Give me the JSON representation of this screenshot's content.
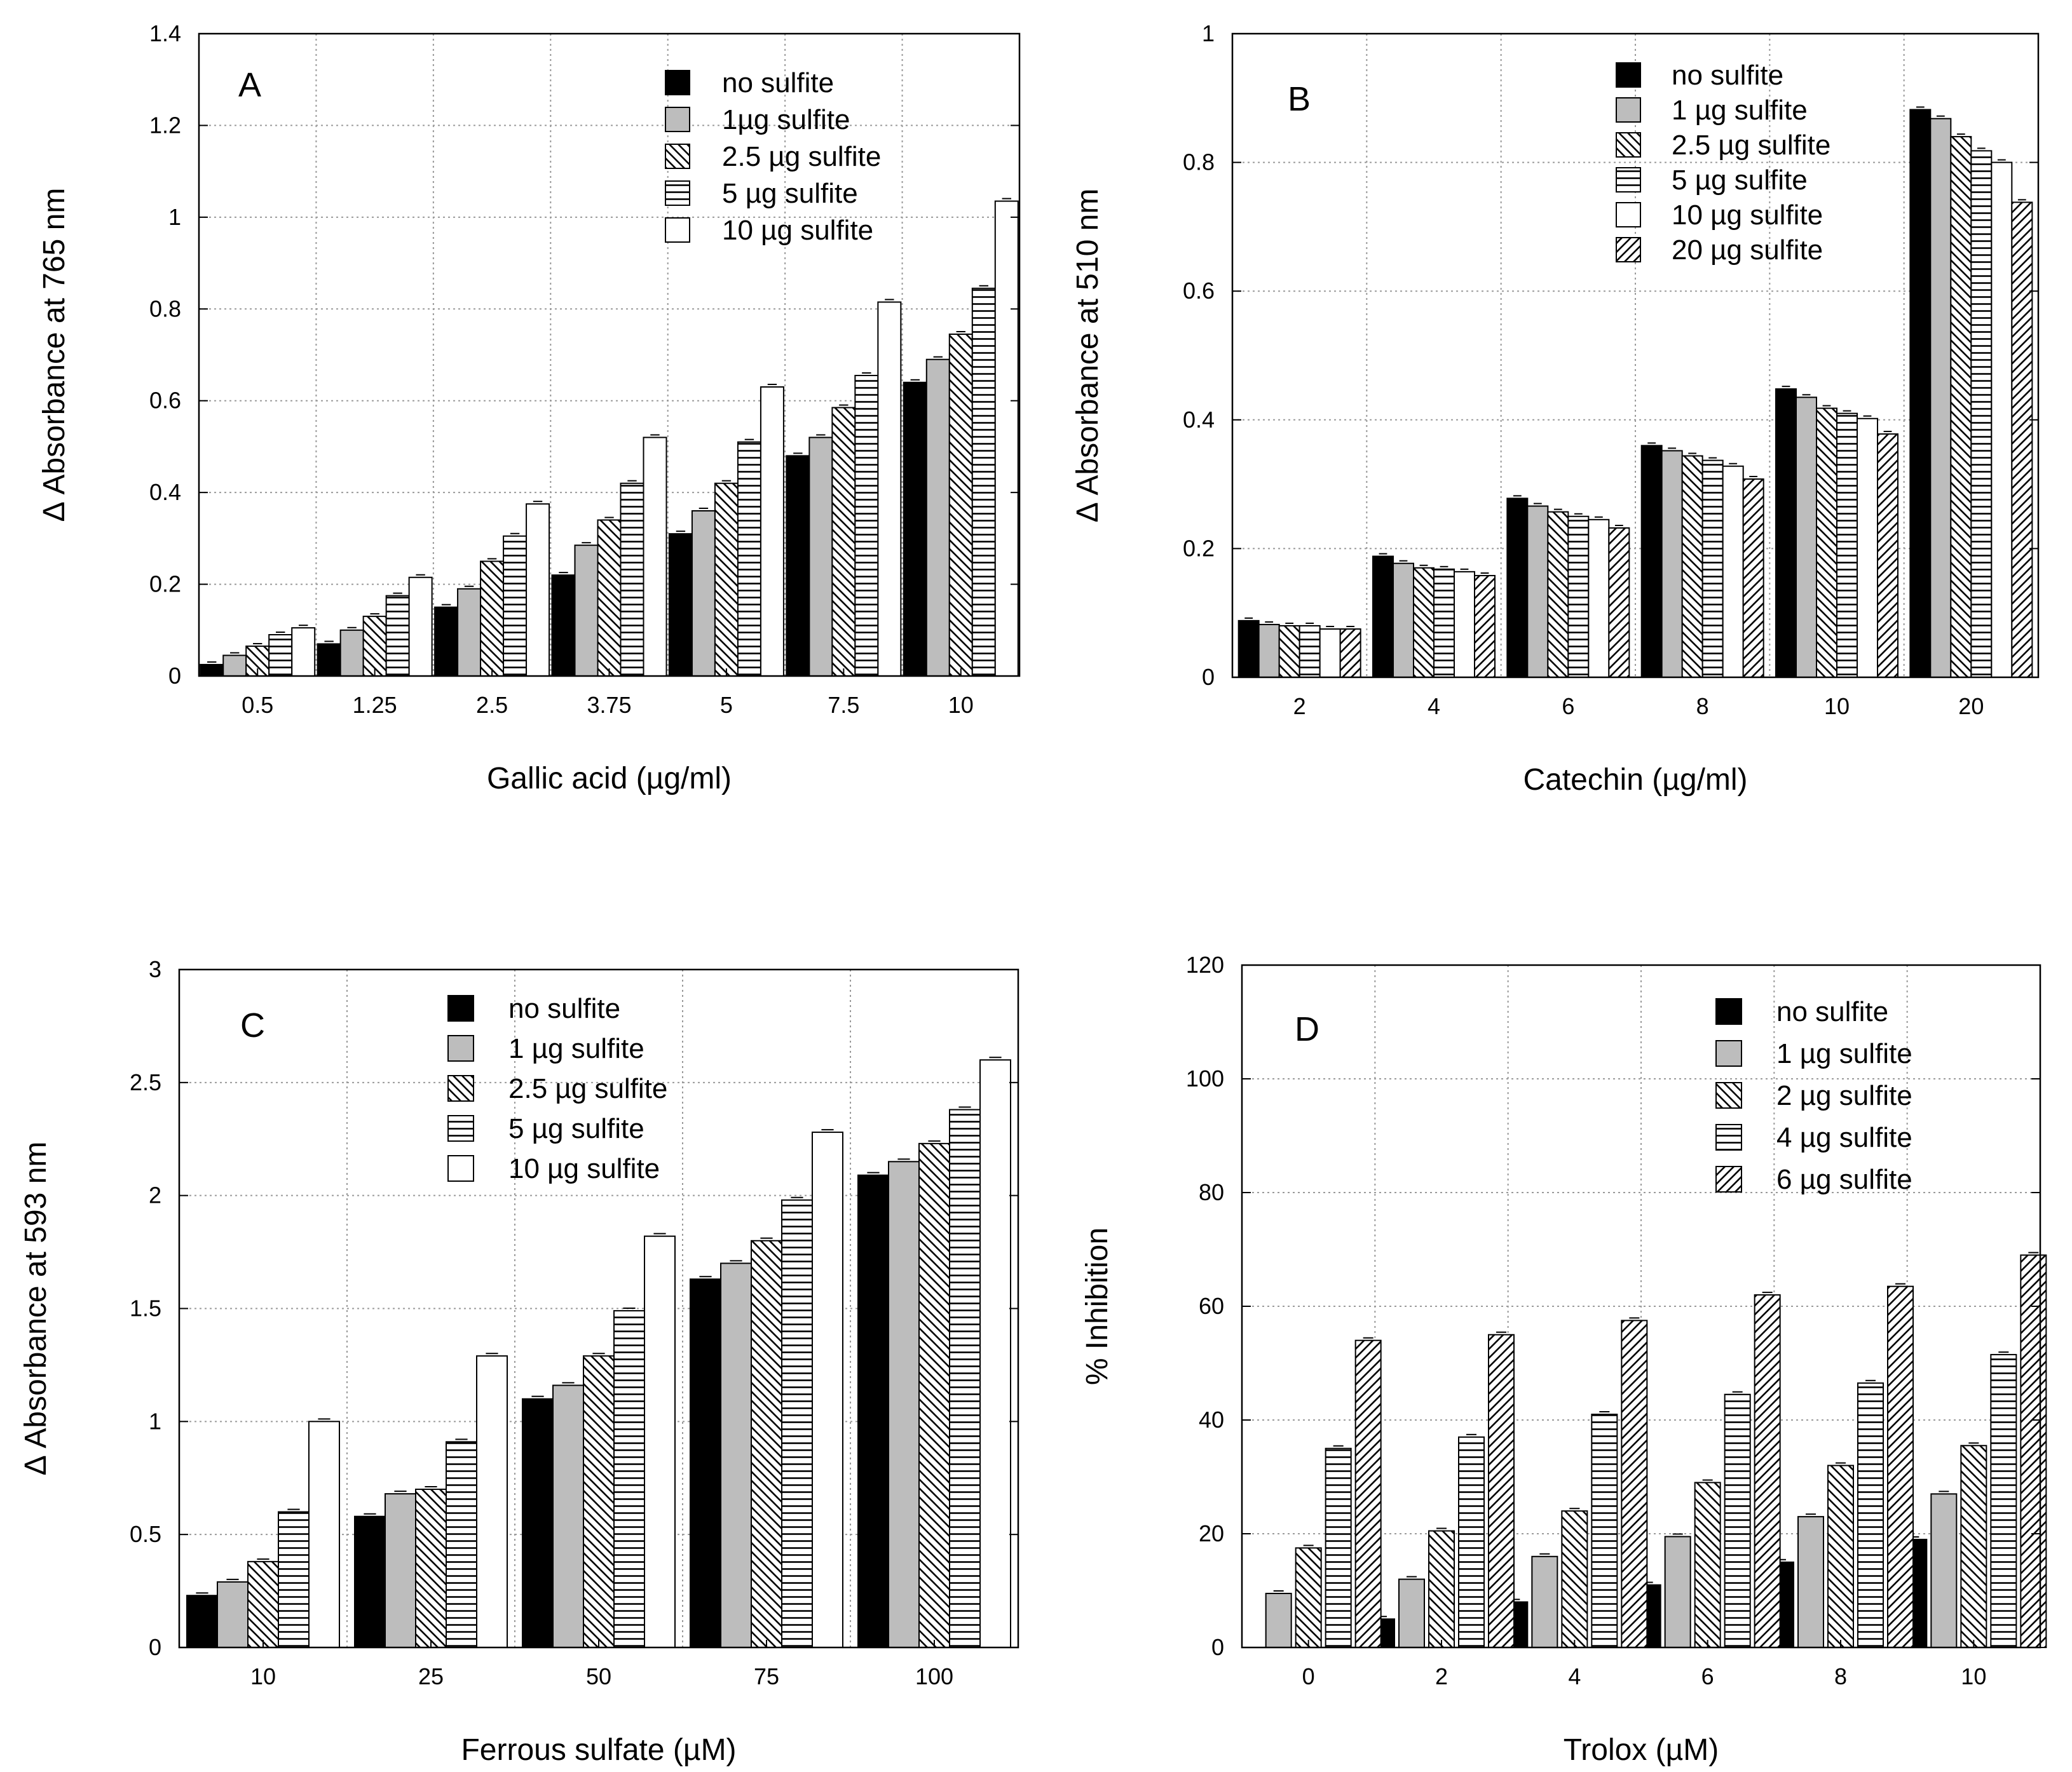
{
  "colors": {
    "black": "#000000",
    "gray": "#bdbdbd",
    "white": "#ffffff",
    "grid": "#9a9a9a"
  },
  "chart_data": [
    {
      "type": "bar",
      "panel_label": "A",
      "xlabel": "Gallic acid (µg/ml)",
      "ylabel": "Δ Absorbance at 765 nm",
      "categories": [
        "0.5",
        "1.25",
        "2.5",
        "3.75",
        "5",
        "7.5",
        "10"
      ],
      "ylim": [
        0,
        1.4
      ],
      "yticks": [
        "0",
        "0.2",
        "0.4",
        "0.6",
        "0.8",
        "1",
        "1.2",
        "1.4"
      ],
      "grid": true,
      "legend_position": "top-right",
      "series": [
        {
          "name": "no sulfite",
          "pattern": "black",
          "values": [
            0.025,
            0.07,
            0.15,
            0.22,
            0.31,
            0.48,
            0.64
          ]
        },
        {
          "name": "1µg sulfite",
          "pattern": "gray",
          "values": [
            0.045,
            0.1,
            0.19,
            0.285,
            0.36,
            0.52,
            0.69
          ]
        },
        {
          "name": "2.5 µg sulfite",
          "pattern": "diag-back",
          "values": [
            0.065,
            0.13,
            0.25,
            0.34,
            0.42,
            0.585,
            0.745
          ]
        },
        {
          "name": "5 µg sulfite",
          "pattern": "horiz",
          "values": [
            0.09,
            0.175,
            0.305,
            0.42,
            0.51,
            0.655,
            0.845
          ]
        },
        {
          "name": "10 µg sulfite",
          "pattern": "white",
          "values": [
            0.105,
            0.215,
            0.375,
            0.52,
            0.63,
            0.815,
            1.035
          ]
        }
      ]
    },
    {
      "type": "bar",
      "panel_label": "B",
      "xlabel": "Catechin (µg/ml)",
      "ylabel": "Δ Absorbance at 510 nm",
      "categories": [
        "2",
        "4",
        "6",
        "8",
        "10",
        "20"
      ],
      "ylim": [
        0,
        1
      ],
      "yticks": [
        "0",
        "0.2",
        "0.4",
        "0.6",
        "0.8",
        "1"
      ],
      "grid": true,
      "legend_position": "top-right",
      "series": [
        {
          "name": "no sulfite",
          "pattern": "black",
          "values": [
            0.088,
            0.188,
            0.278,
            0.36,
            0.448,
            0.882
          ]
        },
        {
          "name": "1 µg sulfite",
          "pattern": "gray",
          "values": [
            0.082,
            0.177,
            0.266,
            0.352,
            0.435,
            0.868
          ]
        },
        {
          "name": "2.5 µg sulfite",
          "pattern": "diag-back",
          "values": [
            0.08,
            0.17,
            0.257,
            0.344,
            0.418,
            0.84
          ]
        },
        {
          "name": "5 µg sulfite",
          "pattern": "horiz",
          "values": [
            0.08,
            0.168,
            0.25,
            0.337,
            0.41,
            0.818
          ]
        },
        {
          "name": "10 µg sulfite",
          "pattern": "white",
          "values": [
            0.075,
            0.164,
            0.245,
            0.328,
            0.402,
            0.8
          ]
        },
        {
          "name": "20 µg sulfite",
          "pattern": "diag-fwd",
          "values": [
            0.075,
            0.158,
            0.232,
            0.308,
            0.378,
            0.738
          ]
        }
      ]
    },
    {
      "type": "bar",
      "panel_label": "C",
      "xlabel": "Ferrous sulfate (µM)",
      "ylabel": "Δ Absorbance at 593 nm",
      "categories": [
        "10",
        "25",
        "50",
        "75",
        "100"
      ],
      "ylim": [
        0,
        3
      ],
      "yticks": [
        "0",
        "0.5",
        "1",
        "1.5",
        "2",
        "2.5",
        "3"
      ],
      "grid": true,
      "legend_position": "top-center",
      "series": [
        {
          "name": "no sulfite",
          "pattern": "black",
          "values": [
            0.23,
            0.58,
            1.1,
            1.63,
            2.09
          ]
        },
        {
          "name": "1 µg sulfite",
          "pattern": "gray",
          "values": [
            0.29,
            0.68,
            1.16,
            1.7,
            2.15
          ]
        },
        {
          "name": "2.5 µg sulfite",
          "pattern": "diag-back",
          "values": [
            0.38,
            0.7,
            1.29,
            1.8,
            2.23
          ]
        },
        {
          "name": "5 µg sulfite",
          "pattern": "horiz",
          "values": [
            0.6,
            0.91,
            1.49,
            1.98,
            2.38
          ]
        },
        {
          "name": "10 µg sulfite",
          "pattern": "white",
          "values": [
            1.0,
            1.29,
            1.82,
            2.28,
            2.6
          ]
        }
      ]
    },
    {
      "type": "bar",
      "panel_label": "D",
      "xlabel": "Trolox (µM)",
      "ylabel": "% Inhibition",
      "categories": [
        "0",
        "2",
        "4",
        "6",
        "8",
        "10"
      ],
      "ylim": [
        0,
        120
      ],
      "yticks": [
        "0",
        "20",
        "40",
        "60",
        "80",
        "100",
        "120"
      ],
      "grid": true,
      "legend_position": "top-right",
      "series": [
        {
          "name": "no sulfite",
          "pattern": "black",
          "values": [
            0,
            5,
            8,
            11,
            15,
            19
          ]
        },
        {
          "name": "1 µg sulfite",
          "pattern": "gray",
          "values": [
            9.5,
            12,
            16,
            19.5,
            23,
            27
          ]
        },
        {
          "name": "2 µg sulfite",
          "pattern": "diag-back",
          "values": [
            17.5,
            20.5,
            24,
            29,
            32,
            35.5
          ]
        },
        {
          "name": "4 µg sulfite",
          "pattern": "horiz",
          "values": [
            35,
            37,
            41,
            44.5,
            46.5,
            51.5
          ]
        },
        {
          "name": "6 µg sulfite",
          "pattern": "diag-fwd",
          "values": [
            54,
            55,
            57.5,
            62,
            63.5,
            69
          ]
        }
      ]
    }
  ]
}
